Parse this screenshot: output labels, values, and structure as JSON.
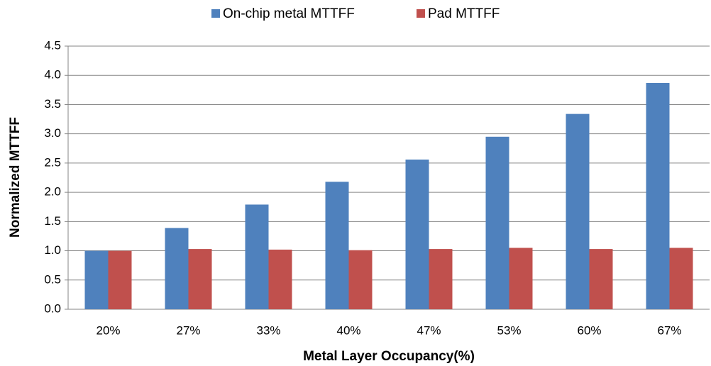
{
  "chart_data": {
    "type": "bar",
    "x_label": "Metal Layer Occupancy(%)",
    "y_label": "Normalized MTTFF",
    "categories": [
      "20%",
      "27%",
      "33%",
      "40%",
      "47%",
      "53%",
      "60%",
      "67%"
    ],
    "series": [
      {
        "name": "On-chip metal MTTFF",
        "color": "#4f81bd",
        "values": [
          1.0,
          1.39,
          1.79,
          2.18,
          2.56,
          2.95,
          3.34,
          3.87
        ]
      },
      {
        "name": "Pad MTTFF",
        "color": "#c0504d",
        "values": [
          1.0,
          1.03,
          1.02,
          1.01,
          1.03,
          1.05,
          1.03,
          1.05
        ]
      }
    ],
    "ylim": [
      0,
      4.5
    ],
    "yticks": [
      {
        "value": 0,
        "label": "0.0"
      },
      0.5,
      {
        "value": 1,
        "label": "1.0"
      },
      1.5,
      {
        "value": 2,
        "label": "2.0"
      },
      2.5,
      {
        "value": 3,
        "label": "3.0"
      },
      3.5,
      {
        "value": 4,
        "label": "4.0"
      },
      4.5
    ],
    "grid": true,
    "legend": "top"
  }
}
